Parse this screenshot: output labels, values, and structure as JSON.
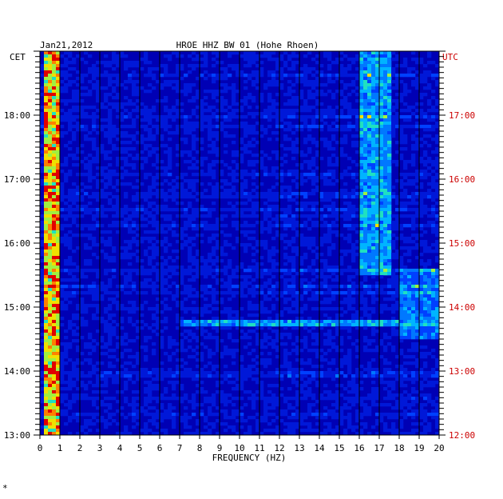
{
  "chart_data": {
    "type": "heatmap",
    "title": "HROE HHZ BW 01 (Hohe Rhoen)",
    "date": "Jan21,2012",
    "xlabel": "FREQUENCY (HZ)",
    "xlim": [
      0,
      20
    ],
    "x_ticks": [
      "0",
      "1",
      "2",
      "3",
      "4",
      "5",
      "6",
      "7",
      "8",
      "9",
      "10",
      "11",
      "12",
      "13",
      "14",
      "15",
      "16",
      "17",
      "18",
      "19",
      "20"
    ],
    "left_axis": {
      "label": "CET",
      "ticks": [
        "13:00",
        "14:00",
        "15:00",
        "16:00",
        "17:00",
        "18:00"
      ],
      "range_hours": [
        13.0,
        19.0
      ]
    },
    "right_axis": {
      "label": "UTC",
      "ticks": [
        "12:00",
        "13:00",
        "14:00",
        "15:00",
        "16:00",
        "17:00"
      ],
      "range_hours": [
        12.0,
        18.0
      ]
    },
    "grid": true,
    "colors": {
      "background": "#0000b4",
      "grid": "#000000",
      "left_text": "#000000",
      "right_text": "#cc0000"
    },
    "features": [
      {
        "description": "microseismic band",
        "freq_range": [
          0.2,
          1.0
        ],
        "intensity": "high",
        "time_cet": [
          13.0,
          19.0
        ]
      },
      {
        "description": "industrial band",
        "freq_range": [
          16.0,
          17.5
        ],
        "intensity": "medium",
        "time_cet": [
          15.5,
          19.0
        ]
      },
      {
        "description": "broadband event",
        "freq_range": [
          7.0,
          20.0
        ],
        "intensity": "medium",
        "time_cet": [
          14.75,
          14.75
        ]
      },
      {
        "description": "high-frequency band",
        "freq_range": [
          18.0,
          20.0
        ],
        "intensity": "low",
        "time_cet": [
          14.5,
          15.6
        ]
      }
    ]
  },
  "footnote": "*"
}
